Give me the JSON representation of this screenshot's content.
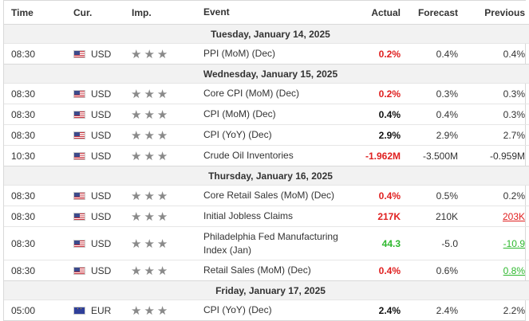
{
  "header": {
    "time": "Time",
    "currency": "Cur.",
    "importance": "Imp.",
    "event": "Event",
    "actual": "Actual",
    "forecast": "Forecast",
    "previous": "Previous"
  },
  "dates": {
    "d1": "Tuesday, January 14, 2025",
    "d2": "Wednesday, January 15, 2025",
    "d3": "Thursday, January 16, 2025",
    "d4": "Friday, January 17, 2025"
  },
  "rows": [
    {
      "time": "08:30",
      "currency": "USD",
      "event": "PPI (MoM) (Dec)",
      "actual": "0.2%",
      "forecast": "0.4%",
      "previous": "0.4%"
    },
    {
      "time": "08:30",
      "currency": "USD",
      "event": "Core CPI (MoM) (Dec)",
      "actual": "0.2%",
      "forecast": "0.3%",
      "previous": "0.3%"
    },
    {
      "time": "08:30",
      "currency": "USD",
      "event": "CPI (MoM) (Dec)",
      "actual": "0.4%",
      "forecast": "0.4%",
      "previous": "0.3%"
    },
    {
      "time": "08:30",
      "currency": "USD",
      "event": "CPI (YoY) (Dec)",
      "actual": "2.9%",
      "forecast": "2.9%",
      "previous": "2.7%"
    },
    {
      "time": "10:30",
      "currency": "USD",
      "event": "Crude Oil Inventories",
      "actual": "-1.962M",
      "forecast": "-3.500M",
      "previous": "-0.959M"
    },
    {
      "time": "08:30",
      "currency": "USD",
      "event": "Core Retail Sales (MoM) (Dec)",
      "actual": "0.4%",
      "forecast": "0.5%",
      "previous": "0.2%"
    },
    {
      "time": "08:30",
      "currency": "USD",
      "event": "Initial Jobless Claims",
      "actual": "217K",
      "forecast": "210K",
      "previous": "203K"
    },
    {
      "time": "08:30",
      "currency": "USD",
      "event": "Philadelphia Fed Manufacturing Index (Jan)",
      "actual": "44.3",
      "forecast": "-5.0",
      "previous": "-10.9"
    },
    {
      "time": "08:30",
      "currency": "USD",
      "event": "Retail Sales (MoM) (Dec)",
      "actual": "0.4%",
      "forecast": "0.6%",
      "previous": "0.8%"
    },
    {
      "time": "05:00",
      "currency": "EUR",
      "event": "CPI (YoY) (Dec)",
      "actual": "2.4%",
      "forecast": "2.4%",
      "previous": "2.2%"
    }
  ],
  "importance_stars": "★★★",
  "colors": {
    "negative": "#e02020",
    "positive": "#2eb82e",
    "neutral": "#111111",
    "date_band": "#f2f2f2",
    "star": "#8a8a8a"
  },
  "icons": {
    "usd_flag": "us-flag-icon",
    "eur_flag": "eu-flag-icon",
    "importance": "star-icon"
  }
}
